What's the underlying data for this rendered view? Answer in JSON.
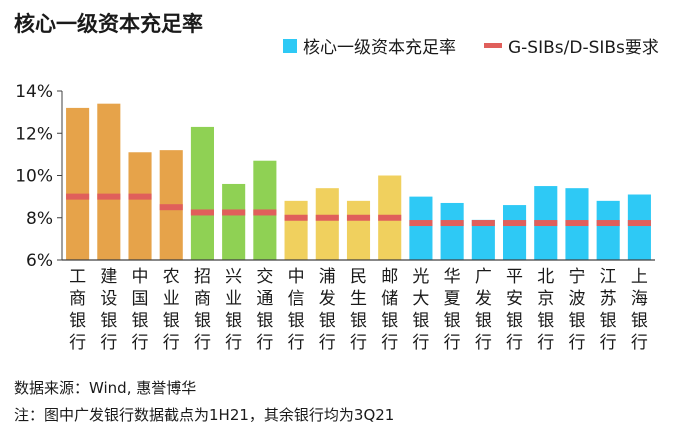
{
  "title": "核心一级资本充足率",
  "legend": {
    "bar_label": "核心一级资本充足率",
    "line_label": "G-SIBs/D-SIBs要求"
  },
  "footer": {
    "source": "数据来源：Wind, 惠誉博华",
    "note": "注：图中广发银行数据截点为1H21，其余银行均为3Q21"
  },
  "colors": {
    "big_four": "#E6A34A",
    "joint_stock_d_sib": "#8FD154",
    "joint_stock_other": "#F0D05E",
    "cyan": "#2EC9F5",
    "requirement": "#E05F5B",
    "axis": "#404040"
  },
  "chart_data": {
    "type": "bar",
    "title": "核心一级资本充足率",
    "xlabel": "",
    "ylabel": "",
    "ylim": [
      6,
      14
    ],
    "yticks": [
      "6%",
      "8%",
      "10%",
      "12%",
      "14%"
    ],
    "grid": false,
    "legend_position": "top-right",
    "categories": [
      "工商银行",
      "建设银行",
      "中国银行",
      "农业银行",
      "招商银行",
      "兴业银行",
      "交通银行",
      "中信银行",
      "浦发银行",
      "民生银行",
      "邮储银行",
      "光大银行",
      "华夏银行",
      "广发银行",
      "平安银行",
      "北京银行",
      "宁波银行",
      "江苏银行",
      "上海银行"
    ],
    "series": [
      {
        "name": "核心一级资本充足率",
        "type": "bar",
        "values": [
          13.2,
          13.4,
          11.1,
          11.2,
          12.3,
          9.6,
          10.7,
          8.8,
          9.4,
          8.8,
          10.0,
          9.0,
          8.7,
          7.9,
          8.6,
          9.5,
          9.4,
          8.8,
          9.1
        ],
        "color_groups": [
          "big_four",
          "big_four",
          "big_four",
          "big_four",
          "joint_stock_d_sib",
          "joint_stock_d_sib",
          "joint_stock_d_sib",
          "joint_stock_other",
          "joint_stock_other",
          "joint_stock_other",
          "joint_stock_other",
          "cyan",
          "cyan",
          "cyan",
          "cyan",
          "cyan",
          "cyan",
          "cyan",
          "cyan"
        ]
      },
      {
        "name": "G-SIBs/D-SIBs要求",
        "type": "marker",
        "values": [
          9.0,
          9.0,
          9.0,
          8.5,
          8.25,
          8.25,
          8.25,
          8.0,
          8.0,
          8.0,
          8.0,
          7.75,
          7.75,
          7.75,
          7.75,
          7.75,
          7.75,
          7.75,
          7.75
        ]
      }
    ]
  }
}
